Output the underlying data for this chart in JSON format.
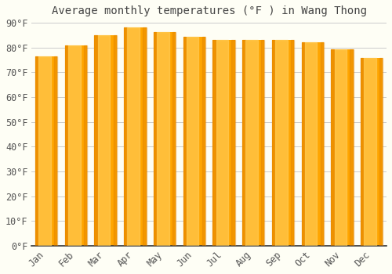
{
  "title": "Average monthly temperatures (°F ) in Wang Thong",
  "months": [
    "Jan",
    "Feb",
    "Mar",
    "Apr",
    "May",
    "Jun",
    "Jul",
    "Aug",
    "Sep",
    "Oct",
    "Nov",
    "Dec"
  ],
  "values": [
    76.3,
    80.8,
    85.1,
    88.2,
    86.2,
    84.2,
    83.1,
    83.1,
    83.1,
    82.2,
    79.3,
    75.9
  ],
  "bar_color_main": "#FFA500",
  "bar_color_light": "#FFD060",
  "bar_color_edge": "#E08000",
  "background_color": "#FEFEF5",
  "plot_bg_color": "#FEFEF5",
  "grid_color": "#cccccc",
  "axis_color": "#333333",
  "tick_color": "#555555",
  "ylim": [
    0,
    90
  ],
  "yticks": [
    0,
    10,
    20,
    30,
    40,
    50,
    60,
    70,
    80,
    90
  ],
  "ytick_labels": [
    "0°F",
    "10°F",
    "20°F",
    "30°F",
    "40°F",
    "50°F",
    "60°F",
    "70°F",
    "80°F",
    "90°F"
  ],
  "title_fontsize": 10,
  "tick_fontsize": 8.5,
  "font_family": "monospace",
  "bar_width": 0.75
}
